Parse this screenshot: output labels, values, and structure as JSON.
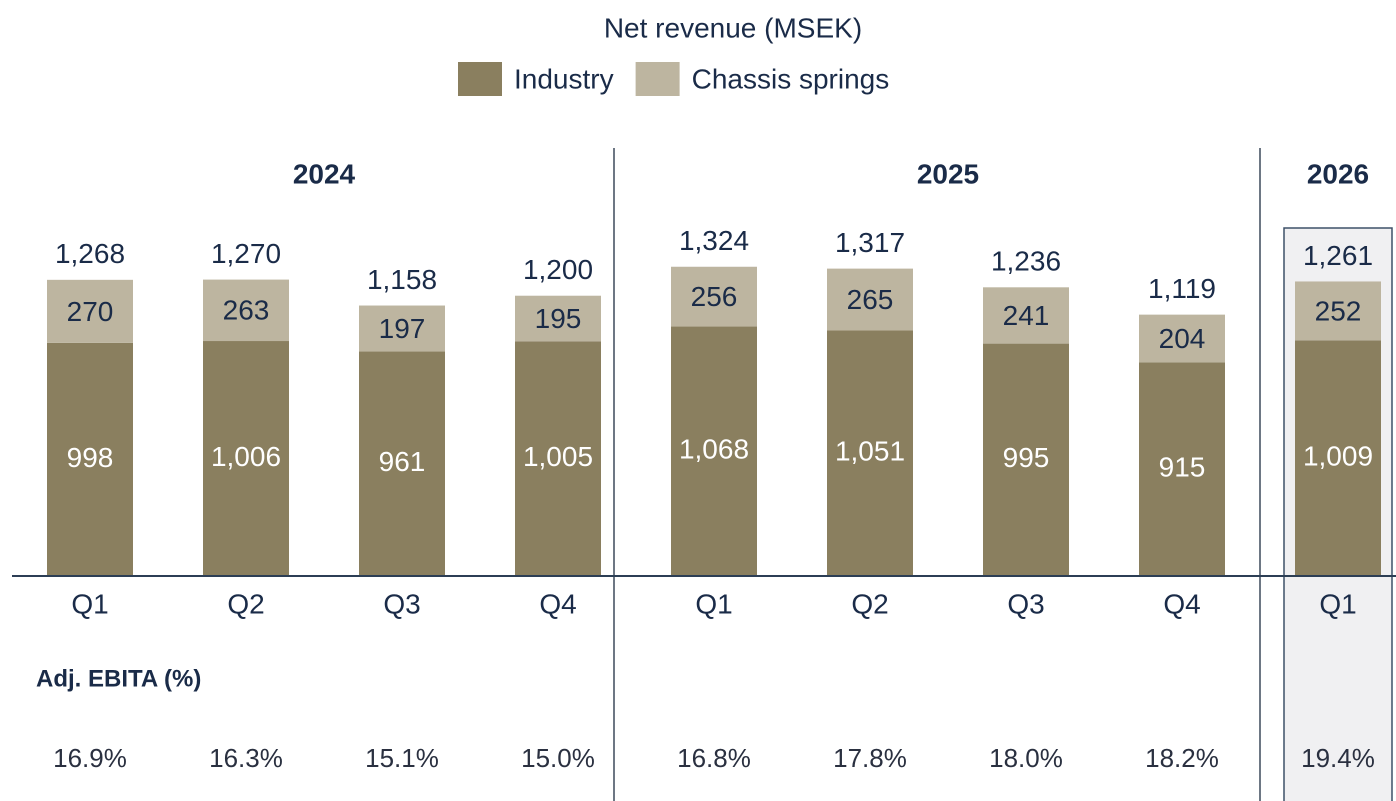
{
  "chart_data": {
    "type": "stacked-bar",
    "title": "Net revenue (MSEK)",
    "groups": [
      {
        "name": "2024",
        "categories": [
          "Q1",
          "Q2",
          "Q3",
          "Q4"
        ]
      },
      {
        "name": "2025",
        "categories": [
          "Q1",
          "Q2",
          "Q3",
          "Q4"
        ]
      },
      {
        "name": "2026",
        "categories": [
          "Q1"
        ]
      }
    ],
    "series": [
      {
        "name": "Industry",
        "color": "#8a7f5f",
        "values": [
          998,
          1006,
          961,
          1005,
          1068,
          1051,
          995,
          915,
          1009
        ],
        "value_labels": [
          "998",
          "1,006",
          "961",
          "1,005",
          "1,068",
          "1,051",
          "995",
          "915",
          "1,009"
        ]
      },
      {
        "name": "Chassis springs",
        "color": "#bdb5a0",
        "values": [
          270,
          263,
          197,
          195,
          256,
          265,
          241,
          204,
          252
        ]
      }
    ],
    "totals": [
      1268,
      1270,
      1158,
      1200,
      1324,
      1317,
      1236,
      1119,
      1261
    ],
    "total_labels": [
      "1,268",
      "1,270",
      "1,158",
      "1,200",
      "1,324",
      "1,317",
      "1,236",
      "1,119",
      "1,261"
    ],
    "ylim": [
      0,
      1400
    ],
    "ebita": {
      "label": "Adj. EBITA (%)",
      "values": [
        16.9,
        16.3,
        15.1,
        15.0,
        16.8,
        17.8,
        18.0,
        18.2,
        19.4
      ],
      "value_labels": [
        "16.9%",
        "16.3%",
        "15.1%",
        "15.0%",
        "16.8%",
        "17.8%",
        "18.0%",
        "18.2%",
        "19.4%"
      ]
    }
  }
}
